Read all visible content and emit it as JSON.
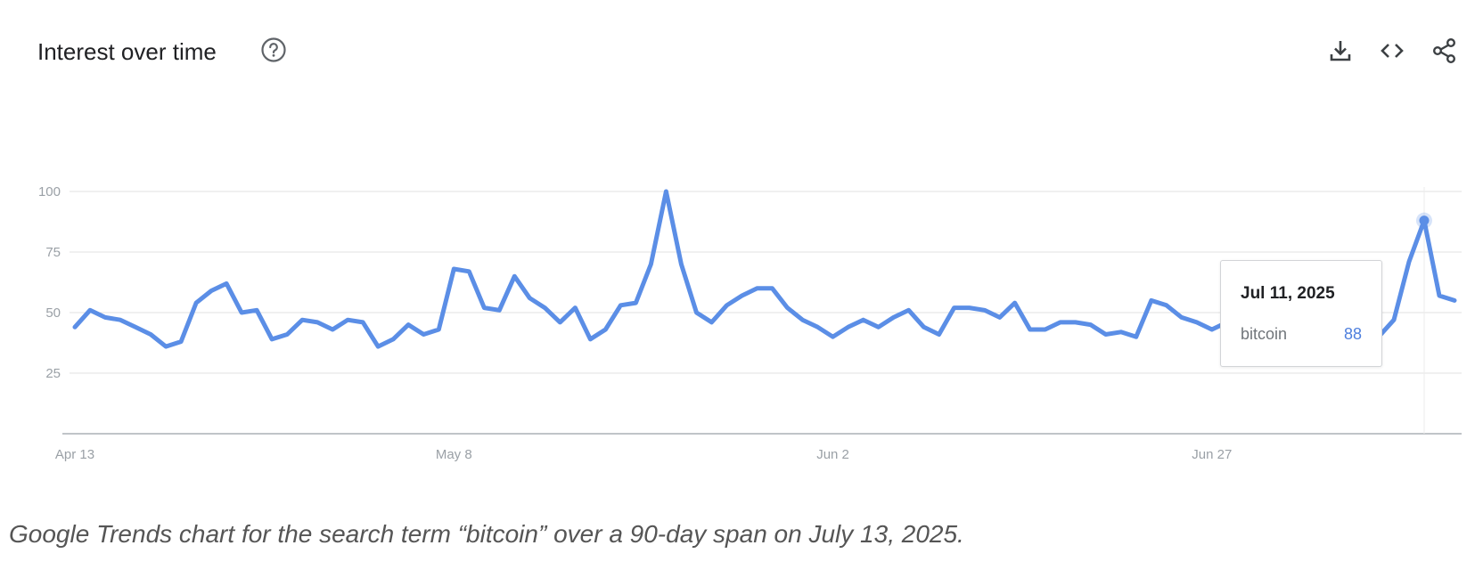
{
  "header": {
    "title": "Interest over time",
    "help_icon": "help-circle-icon",
    "actions": [
      {
        "name": "download",
        "icon": "download-icon"
      },
      {
        "name": "embed",
        "icon": "code-icon"
      },
      {
        "name": "share",
        "icon": "share-icon"
      }
    ]
  },
  "tooltip": {
    "date": "Jul 11, 2025",
    "term": "bitcoin",
    "value": "88"
  },
  "caption": "Google Trends chart for the search term “bitcoin” over a 90-day span on July 13, 2025.",
  "colors": {
    "series": "#5b8ee6",
    "grid": "#e0e0e0",
    "axis": "#9aa0a6",
    "tooltip_value": "#4e7fdd"
  },
  "chart_data": {
    "type": "line",
    "title": "Interest over time",
    "xlabel": "",
    "ylabel": "",
    "ylim": [
      0,
      100
    ],
    "yticks": [
      25,
      50,
      75,
      100
    ],
    "xticks": [
      "Apr 13",
      "May 8",
      "Jun 2",
      "Jun 27"
    ],
    "x_start": "Apr 13",
    "x_end": "Jul 13",
    "grid": true,
    "series": [
      {
        "name": "bitcoin",
        "values": [
          44,
          51,
          48,
          47,
          44,
          41,
          36,
          38,
          54,
          59,
          62,
          50,
          51,
          39,
          41,
          47,
          46,
          43,
          47,
          46,
          36,
          39,
          45,
          41,
          43,
          68,
          67,
          52,
          51,
          65,
          56,
          52,
          46,
          52,
          39,
          43,
          53,
          54,
          70,
          100,
          70,
          50,
          46,
          53,
          57,
          60,
          60,
          52,
          47,
          44,
          40,
          44,
          47,
          44,
          48,
          51,
          44,
          41,
          52,
          52,
          51,
          48,
          54,
          43,
          43,
          46,
          46,
          45,
          41,
          42,
          40,
          55,
          53,
          48,
          46,
          43,
          46,
          37,
          38,
          40,
          43,
          44,
          42,
          39,
          40,
          43,
          40,
          47,
          71,
          88,
          57,
          55
        ]
      }
    ],
    "highlight": {
      "date": "Jul 11, 2025",
      "value": 88
    }
  }
}
